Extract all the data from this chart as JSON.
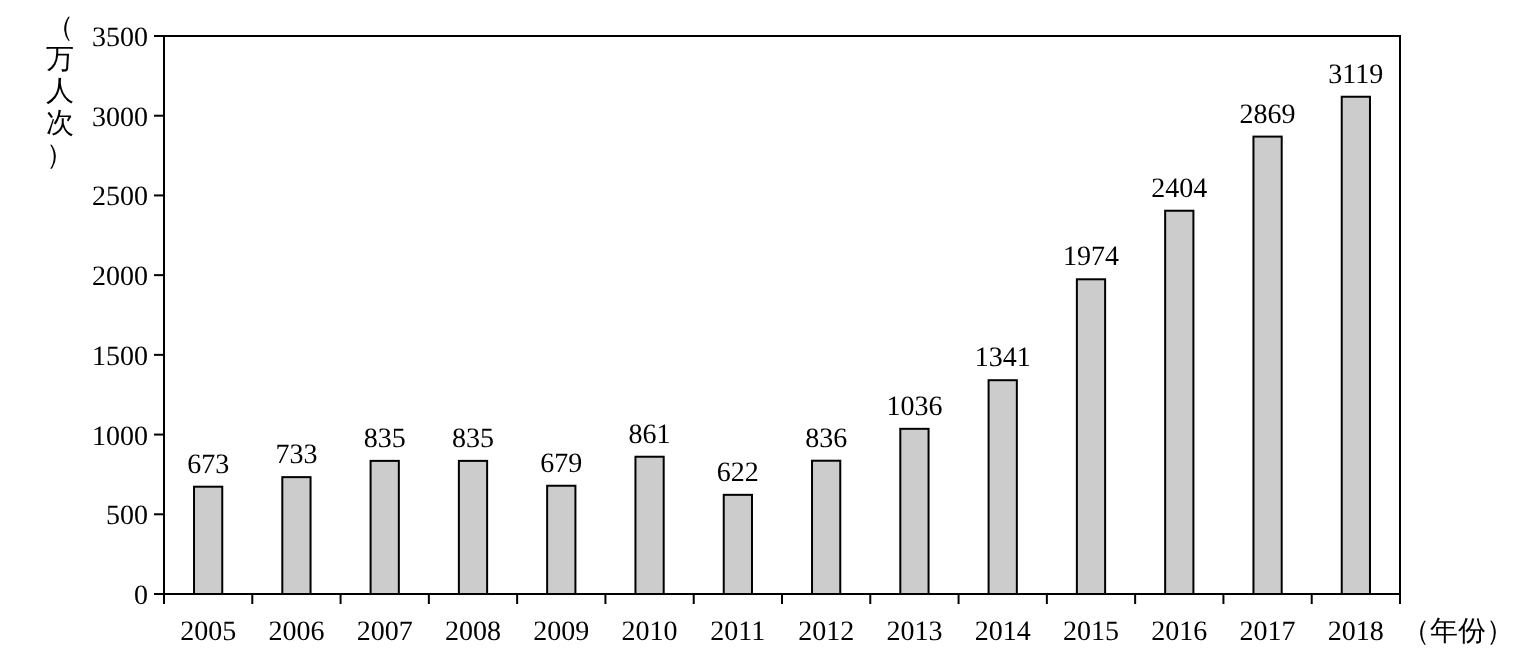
{
  "chart_data": {
    "type": "bar",
    "categories": [
      "2005",
      "2006",
      "2007",
      "2008",
      "2009",
      "2010",
      "2011",
      "2012",
      "2013",
      "2014",
      "2015",
      "2016",
      "2017",
      "2018"
    ],
    "values": [
      673,
      733,
      835,
      835,
      679,
      861,
      622,
      836,
      1036,
      1341,
      1974,
      2404,
      2869,
      3119
    ],
    "color": "#cccccc",
    "ylim": [
      0,
      3500
    ],
    "yticks": [
      0,
      500,
      1000,
      1500,
      2000,
      2500,
      3000,
      3500
    ],
    "ylabel": "（万人次）",
    "xlabel": "（年份）",
    "data_labels": true
  }
}
